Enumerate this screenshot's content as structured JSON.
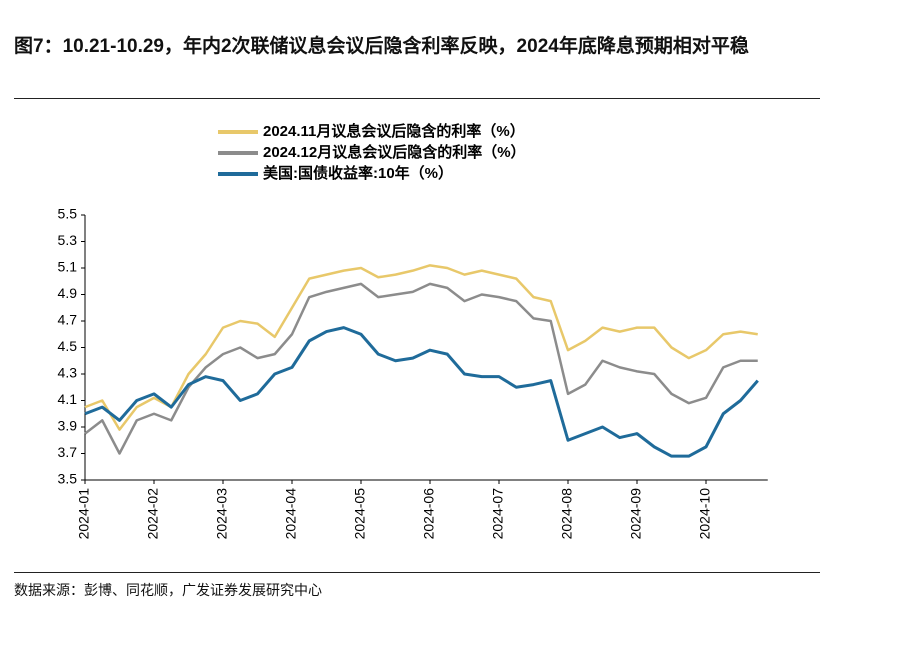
{
  "chart_data": {
    "type": "line",
    "title": "图7：10.21-10.29，年内2次联储议息会议后隐含利率反映，2024年底降息预期相对平稳",
    "source": "数据来源：彭博、同花顺，广发证券发展研究中心",
    "categories": [
      "2024-01",
      null,
      null,
      null,
      "2024-02",
      null,
      null,
      null,
      "2024-03",
      null,
      null,
      null,
      "2024-04",
      null,
      null,
      null,
      "2024-05",
      null,
      null,
      null,
      "2024-06",
      null,
      null,
      null,
      "2024-07",
      null,
      null,
      null,
      "2024-08",
      null,
      null,
      null,
      "2024-09",
      null,
      null,
      null,
      "2024-10",
      null,
      null,
      null
    ],
    "series": [
      {
        "name": "2024.11月议息会议后隐含的利率（%）",
        "color": "#e8c86a",
        "values": [
          4.05,
          4.1,
          3.88,
          4.05,
          4.12,
          4.05,
          4.3,
          4.45,
          4.65,
          4.7,
          4.68,
          4.58,
          4.8,
          5.02,
          5.05,
          5.08,
          5.1,
          5.03,
          5.05,
          5.08,
          5.12,
          5.1,
          5.05,
          5.08,
          5.05,
          5.02,
          4.88,
          4.85,
          4.48,
          4.55,
          4.65,
          4.62,
          4.65,
          4.65,
          4.5,
          4.42,
          4.48,
          4.6,
          4.62,
          4.6
        ]
      },
      {
        "name": "2024.12月议息会议后隐含的利率（%）",
        "color": "#8c8c8c",
        "values": [
          3.85,
          3.95,
          3.7,
          3.95,
          4.0,
          3.95,
          4.2,
          4.35,
          4.45,
          4.5,
          4.42,
          4.45,
          4.6,
          4.88,
          4.92,
          4.95,
          4.98,
          4.88,
          4.9,
          4.92,
          4.98,
          4.95,
          4.85,
          4.9,
          4.88,
          4.85,
          4.72,
          4.7,
          4.15,
          4.22,
          4.4,
          4.35,
          4.32,
          4.3,
          4.15,
          4.08,
          4.12,
          4.35,
          4.4,
          4.4
        ]
      },
      {
        "name": "美国:国债收益率:10年（%）",
        "color": "#1f6b9a",
        "values": [
          4.0,
          4.05,
          3.95,
          4.1,
          4.15,
          4.05,
          4.22,
          4.28,
          4.25,
          4.1,
          4.15,
          4.3,
          4.35,
          4.55,
          4.62,
          4.65,
          4.6,
          4.45,
          4.4,
          4.42,
          4.48,
          4.45,
          4.3,
          4.28,
          4.28,
          4.2,
          4.22,
          4.25,
          3.8,
          3.85,
          3.9,
          3.82,
          3.85,
          3.75,
          3.68,
          3.68,
          3.75,
          4.0,
          4.1,
          4.25
        ]
      }
    ],
    "ylim": [
      3.5,
      5.5
    ],
    "yticks": [
      3.5,
      3.7,
      3.9,
      4.1,
      4.3,
      4.5,
      4.7,
      4.9,
      5.1,
      5.3,
      5.5
    ],
    "grid": false
  }
}
